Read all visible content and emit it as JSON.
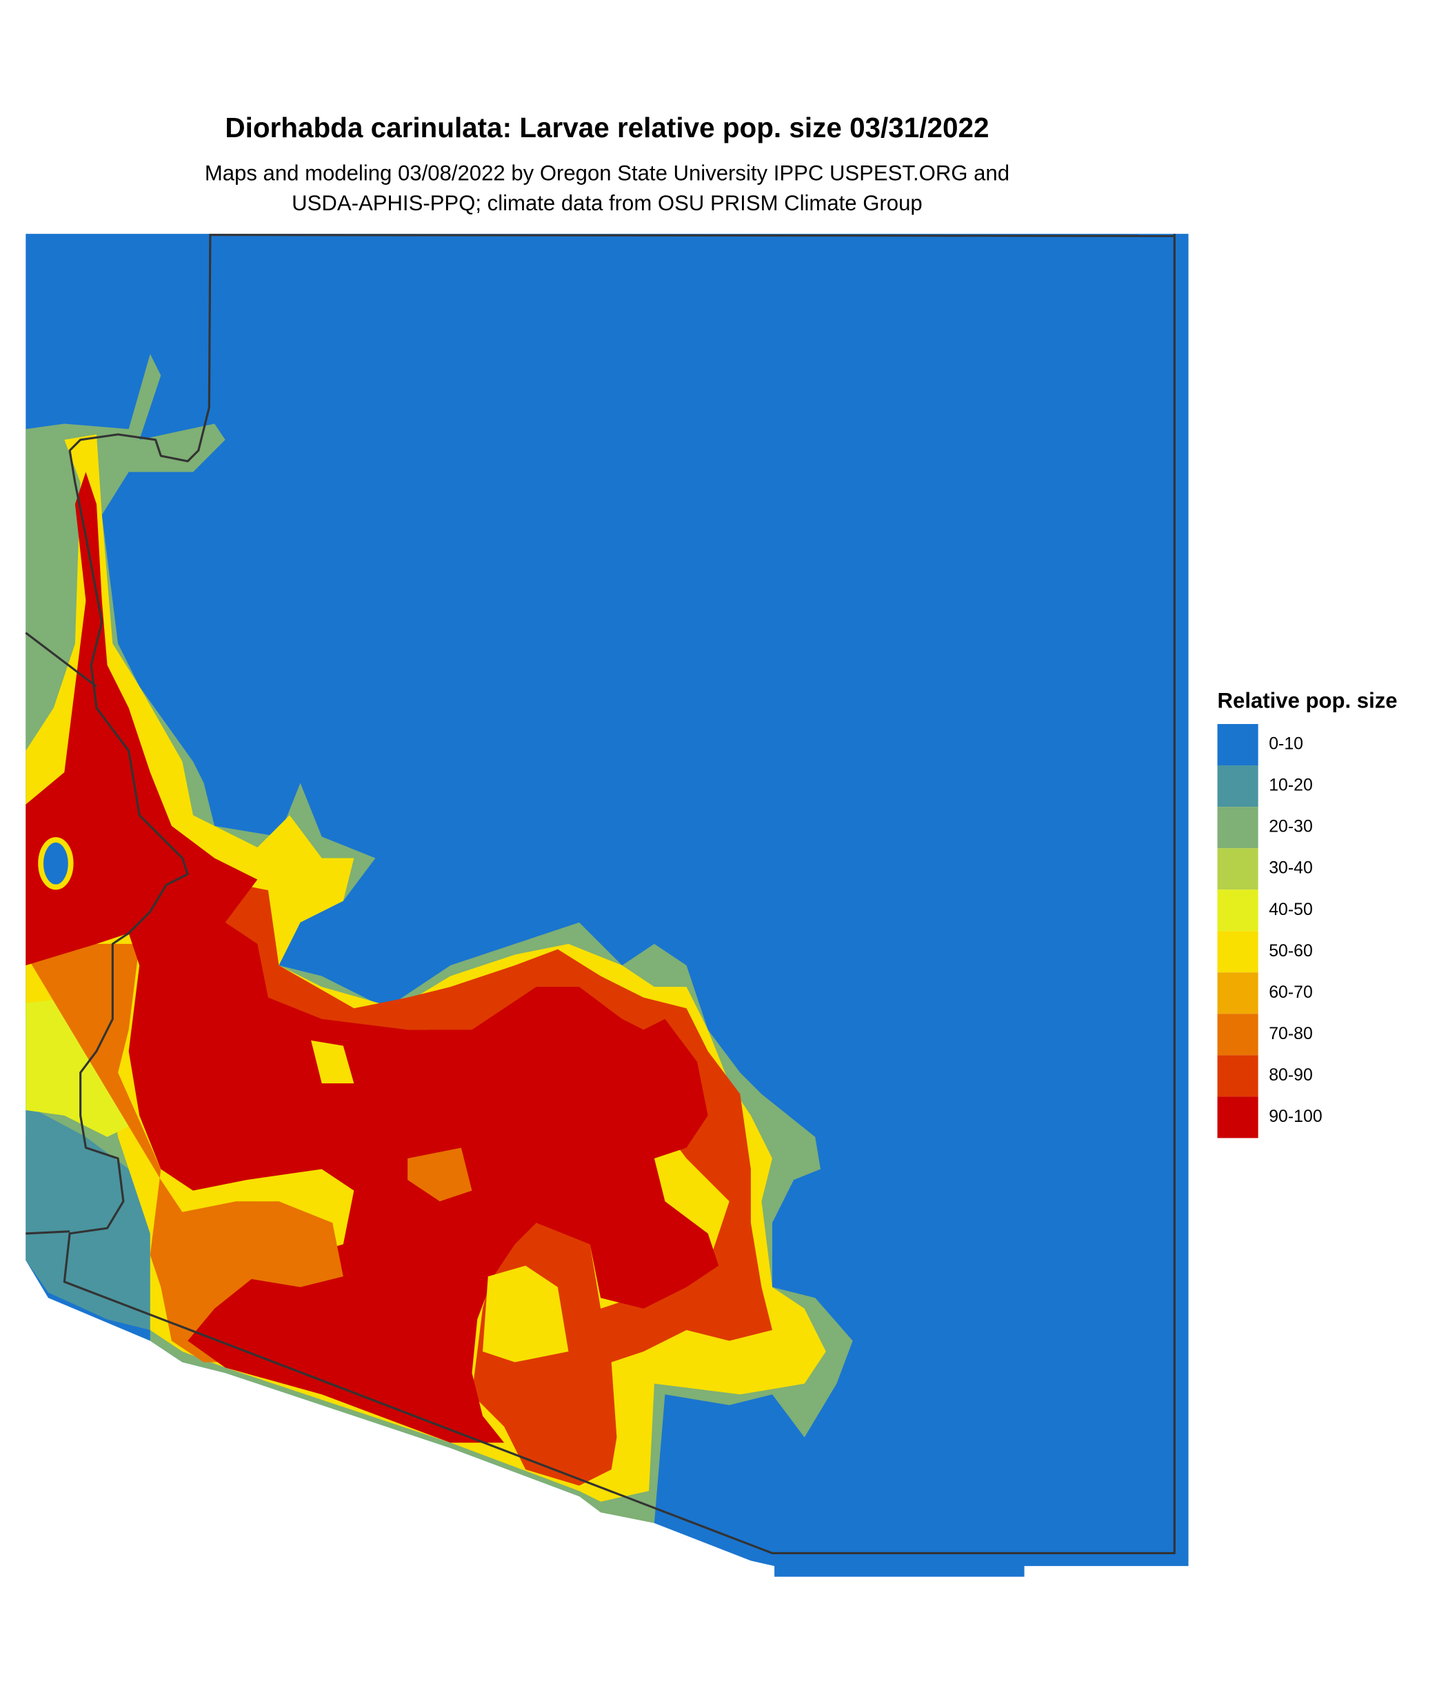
{
  "header": {
    "title": "Diorhabda carinulata: Larvae relative pop. size 03/31/2022",
    "subtitle_lines": [
      "Maps and modeling 03/08/2022 by Oregon State University IPPC USPEST.ORG and",
      "USDA-APHIS-PPQ; climate data from OSU PRISM Climate Group"
    ]
  },
  "legend": {
    "title": "Relative pop. size",
    "items": [
      {
        "label": "0-10",
        "color": "#1a75cf"
      },
      {
        "label": "10-20",
        "color": "#4a95a0"
      },
      {
        "label": "20-30",
        "color": "#7fb075"
      },
      {
        "label": "30-40",
        "color": "#b5d14a"
      },
      {
        "label": "40-50",
        "color": "#e5ef1e"
      },
      {
        "label": "50-60",
        "color": "#f9e000"
      },
      {
        "label": "60-70",
        "color": "#f0aa00"
      },
      {
        "label": "70-80",
        "color": "#e87300"
      },
      {
        "label": "80-90",
        "color": "#de3a00"
      },
      {
        "label": "90-100",
        "color": "#cc0000"
      }
    ]
  }
}
